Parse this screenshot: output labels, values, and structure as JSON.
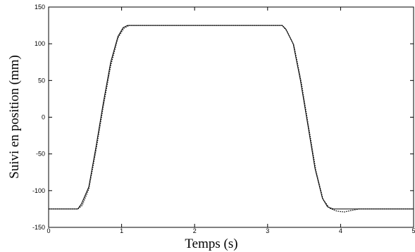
{
  "chart_data": {
    "type": "line",
    "title": "",
    "xlabel": "Temps (s)",
    "ylabel": "Suivi en position (mm)",
    "xlim": [
      0,
      5
    ],
    "ylim": [
      -150,
      150
    ],
    "xticks": [
      "0",
      "1",
      "2",
      "3",
      "4",
      "5"
    ],
    "yticks": [
      "150",
      "100",
      "50",
      "0",
      "-50",
      "-100",
      "-150"
    ],
    "grid": false,
    "legend": "none",
    "series": [
      {
        "name": "",
        "style": "solid",
        "color": "#000000",
        "x": [
          0,
          0.4,
          0.45,
          0.55,
          0.65,
          0.75,
          0.85,
          0.95,
          1.02,
          1.08,
          1.15,
          2.0,
          3.15,
          3.2,
          3.25,
          3.35,
          3.45,
          3.55,
          3.65,
          3.75,
          3.82,
          3.9,
          4.0,
          4.1,
          4.2,
          5.0
        ],
        "y": [
          -125,
          -125,
          -118,
          -95,
          -40,
          20,
          75,
          110,
          122,
          125,
          125,
          125,
          125,
          125,
          120,
          100,
          50,
          -10,
          -70,
          -110,
          -122,
          -125,
          -125,
          -125,
          -125,
          -125
        ]
      },
      {
        "name": "",
        "style": "dotted",
        "color": "#000000",
        "x": [
          0,
          0.4,
          0.46,
          0.55,
          0.65,
          0.75,
          0.85,
          0.95,
          1.03,
          1.1,
          1.15,
          2.0,
          3.15,
          3.2,
          3.26,
          3.36,
          3.46,
          3.56,
          3.66,
          3.76,
          3.85,
          3.95,
          4.05,
          4.15,
          4.25,
          5.0
        ],
        "y": [
          -125,
          -125,
          -120,
          -98,
          -45,
          15,
          70,
          108,
          121,
          125,
          125,
          125,
          125,
          125,
          118,
          98,
          48,
          -12,
          -72,
          -112,
          -124,
          -128,
          -129,
          -127,
          -125,
          -125
        ]
      }
    ]
  }
}
